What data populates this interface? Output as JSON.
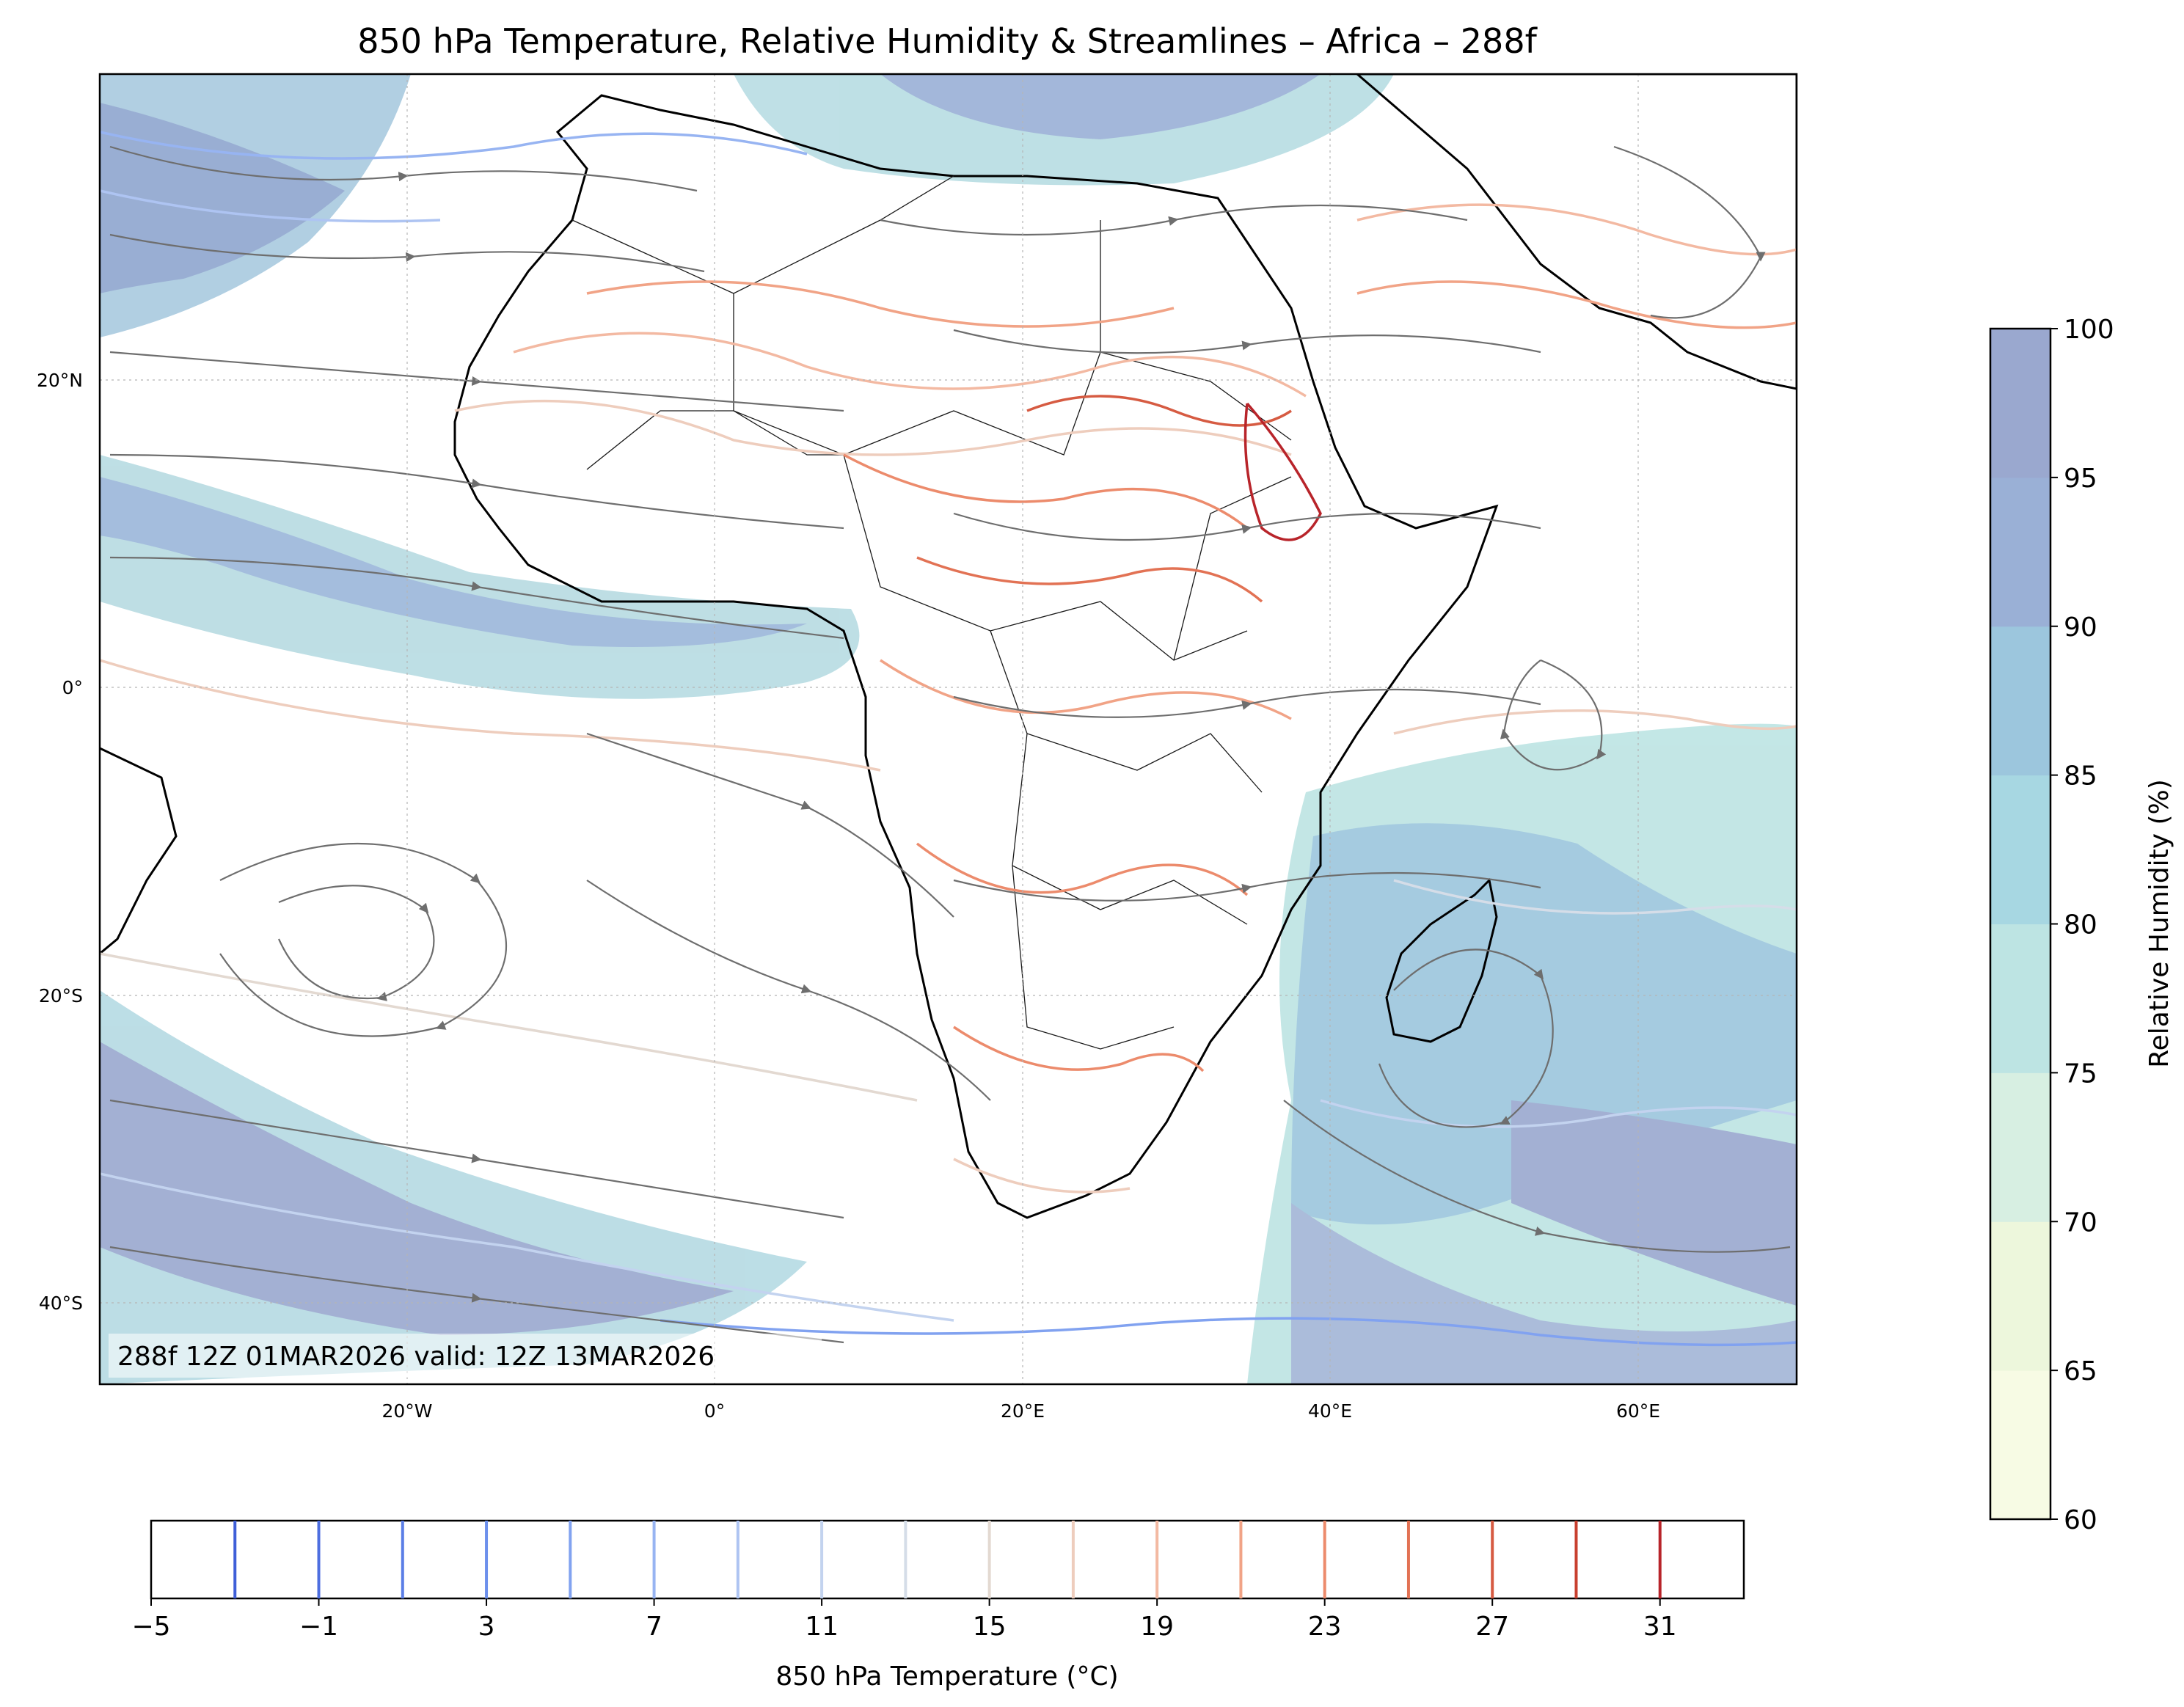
{
  "title": "850 hPa Temperature, Relative Humidity & Streamlines – Africa – 288f",
  "valid_stamp": "288f 12Z 01MAR2026 valid: 12Z 13MAR2026",
  "map": {
    "lon_range": [
      -40,
      70
    ],
    "lat_range": [
      -45,
      40
    ],
    "lon_ticks": [
      {
        "value": -20,
        "label": "20°W"
      },
      {
        "value": 0,
        "label": "0°"
      },
      {
        "value": 20,
        "label": "20°E"
      },
      {
        "value": 40,
        "label": "40°E"
      },
      {
        "value": 60,
        "label": "60°E"
      }
    ],
    "lat_ticks": [
      {
        "value": 20,
        "label": "20°N"
      },
      {
        "value": 0,
        "label": "0°"
      },
      {
        "value": -20,
        "label": "20°S"
      },
      {
        "value": -40,
        "label": "40°S"
      }
    ],
    "gridlines": true
  },
  "rh_colorbar": {
    "label": "Relative Humidity (%)",
    "ticks": [
      "60",
      "65",
      "70",
      "75",
      "80",
      "85",
      "90",
      "95",
      "100"
    ],
    "colors": [
      "#f7fbe4",
      "#edf7dc",
      "#d7efe2",
      "#bde4e3",
      "#a7d7e2",
      "#9cc6dd",
      "#9ab0d6",
      "#9aa8cf"
    ]
  },
  "temp_colorbar": {
    "label": "850 hPa Temperature (°C)",
    "range": [
      -5,
      33
    ],
    "ticks": [
      "−5",
      "−1",
      "3",
      "7",
      "11",
      "15",
      "19",
      "23",
      "27",
      "31"
    ],
    "levels": [
      -3,
      -1,
      1,
      3,
      5,
      7,
      9,
      11,
      13,
      15,
      17,
      19,
      21,
      23,
      25,
      27,
      29,
      31
    ],
    "colors": [
      "#3f5fd8",
      "#4d6ee0",
      "#5b7ee6",
      "#6d90ec",
      "#81a2f0",
      "#97b4f2",
      "#aec4f2",
      "#c3d3ef",
      "#d5dde8",
      "#e3d9d1",
      "#eecdbd",
      "#f3b9a2",
      "#f1a386",
      "#ec8b6c",
      "#e27254",
      "#d65b42",
      "#c8402f",
      "#b8242a"
    ]
  }
}
